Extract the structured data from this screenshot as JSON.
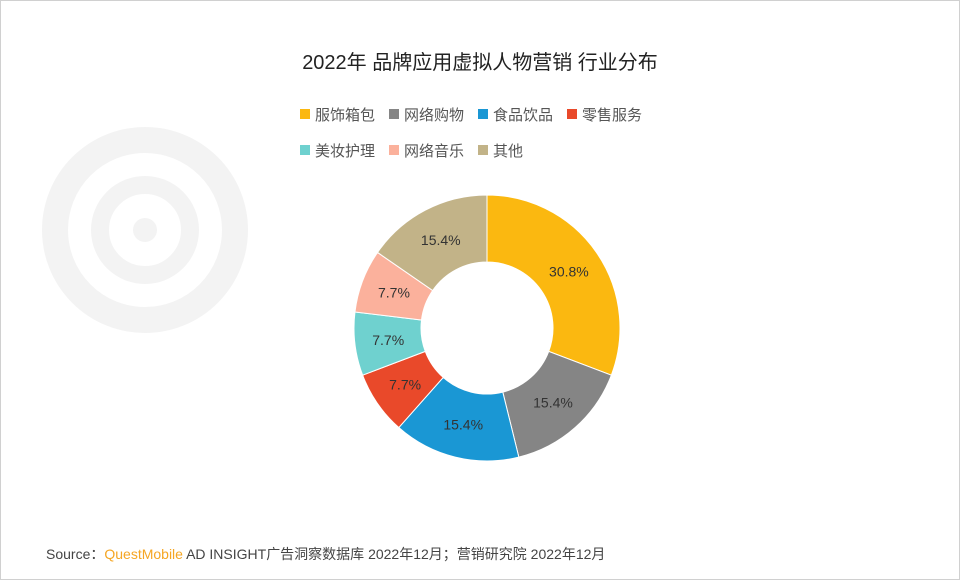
{
  "chart_data": {
    "type": "pie",
    "style": "donut",
    "title": "2022年 品牌应用虚拟人物营销 行业分布",
    "categories": [
      "服饰箱包",
      "网络购物",
      "食品饮品",
      "零售服务",
      "美妆护理",
      "网络音乐",
      "其他"
    ],
    "values": [
      30.8,
      15.4,
      15.4,
      7.7,
      7.7,
      7.7,
      15.4
    ],
    "labels": [
      "30.8%",
      "15.4%",
      "15.4%",
      "7.7%",
      "7.7%",
      "7.7%",
      "15.4%"
    ],
    "colors": [
      "#fbb810",
      "#858585",
      "#1a97d4",
      "#e9492a",
      "#6fd1cf",
      "#fbb19c",
      "#c2b388"
    ],
    "legend_position": "top"
  },
  "watermark": "QUESTMOBILE",
  "source": {
    "prefix": "Source：",
    "brand": "QuestMobile",
    "text": " AD INSIGHT广告洞察数据库 2022年12月；营销研究院 2022年12月"
  }
}
